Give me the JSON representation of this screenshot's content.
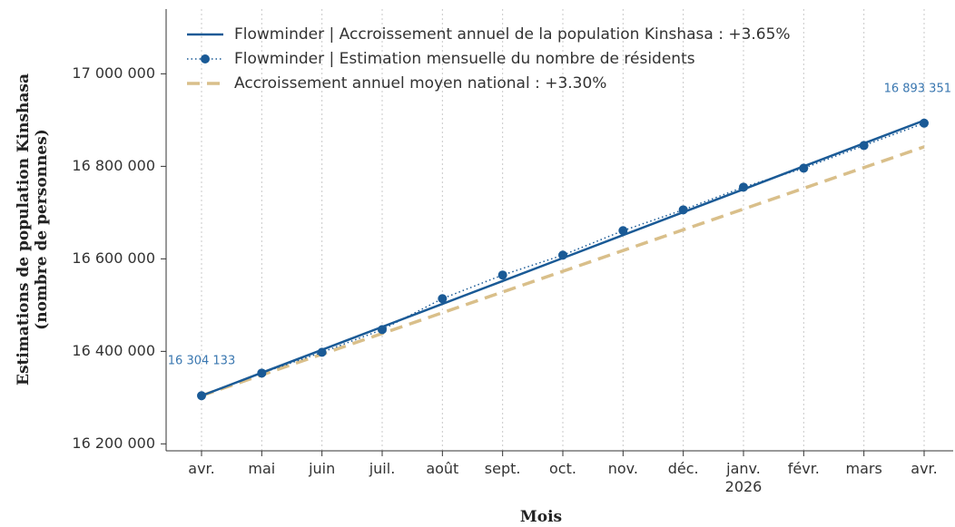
{
  "chart_data": {
    "type": "line",
    "x_label": "Mois",
    "y_label": "Estimations de population Kinshasa\n(nombre de personnes)",
    "categories": [
      "avr.",
      "mai",
      "juin",
      "juil.",
      "août",
      "sept.",
      "oct.",
      "nov.",
      "déc.",
      "janv.\n2026",
      "févr.",
      "mars",
      "avr."
    ],
    "ylim": [
      16185000,
      17140000
    ],
    "yticks": [
      {
        "value": 16200000,
        "label": "16 200 000"
      },
      {
        "value": 16400000,
        "label": "16 400 000"
      },
      {
        "value": 16600000,
        "label": "16 600 000"
      },
      {
        "value": 16800000,
        "label": "16 800 000"
      },
      {
        "value": 17000000,
        "label": "17 000 000"
      }
    ],
    "grid": true,
    "legend": "upper left",
    "series": [
      {
        "name": "Flowminder | Accroissement annuel de la population Kinshasa : +3.65%",
        "color": "#1a5a96",
        "style": "solid",
        "values": [
          16304133,
          16353725,
          16403317,
          16452909,
          16502501,
          16552093,
          16601685,
          16651277,
          16700869,
          16750461,
          16800053,
          16849645,
          16899237
        ]
      },
      {
        "name": "Flowminder | Estimation mensuelle du nombre de résidents",
        "color": "#1a5a96",
        "style": "dotted",
        "markers": true,
        "values": [
          16304133,
          16353000,
          16398000,
          16447000,
          16514000,
          16565000,
          16608000,
          16661000,
          16706000,
          16755000,
          16796000,
          16845000,
          16893351
        ],
        "value_labels": [
          "16 304 133",
          null,
          null,
          null,
          null,
          null,
          null,
          null,
          null,
          null,
          null,
          null,
          "16 893 351"
        ]
      },
      {
        "name": "Accroissement annuel moyen national : +3.30%",
        "color": "#d9bf8a",
        "style": "dashed",
        "values": [
          16304133,
          16348969,
          16393805,
          16438641,
          16483477,
          16528313,
          16573149,
          16617985,
          16662821,
          16707657,
          16752493,
          16797329,
          16842165
        ]
      }
    ]
  }
}
